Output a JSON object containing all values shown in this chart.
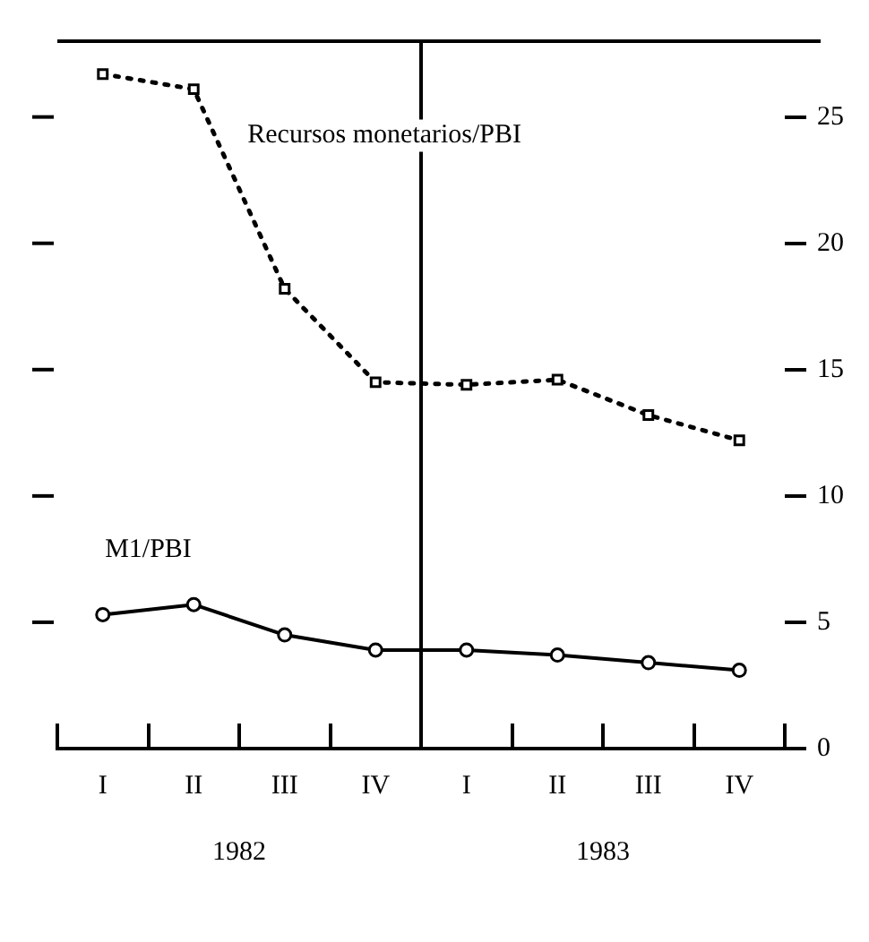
{
  "chart_data": {
    "type": "line",
    "categories": [
      "I",
      "II",
      "III",
      "IV",
      "I",
      "II",
      "III",
      "IV"
    ],
    "series": [
      {
        "name": "Recursos monetarios/PBI",
        "color": "#000000",
        "values": [
          26.7,
          26.1,
          18.2,
          14.5,
          14.4,
          14.6,
          13.2,
          12.2
        ],
        "marker": "square",
        "line_style": "dotted"
      },
      {
        "name": "M1/PBI",
        "color": "#000000",
        "values": [
          5.3,
          5.7,
          4.5,
          3.9,
          3.9,
          3.7,
          3.4,
          3.1
        ],
        "marker": "circle",
        "line_style": "solid"
      }
    ],
    "ylim": [
      0,
      28
    ],
    "yticks": [
      0,
      5,
      10,
      15,
      20,
      25
    ],
    "grid": false,
    "legend": false,
    "annotations": [
      "1982",
      "1983"
    ]
  }
}
